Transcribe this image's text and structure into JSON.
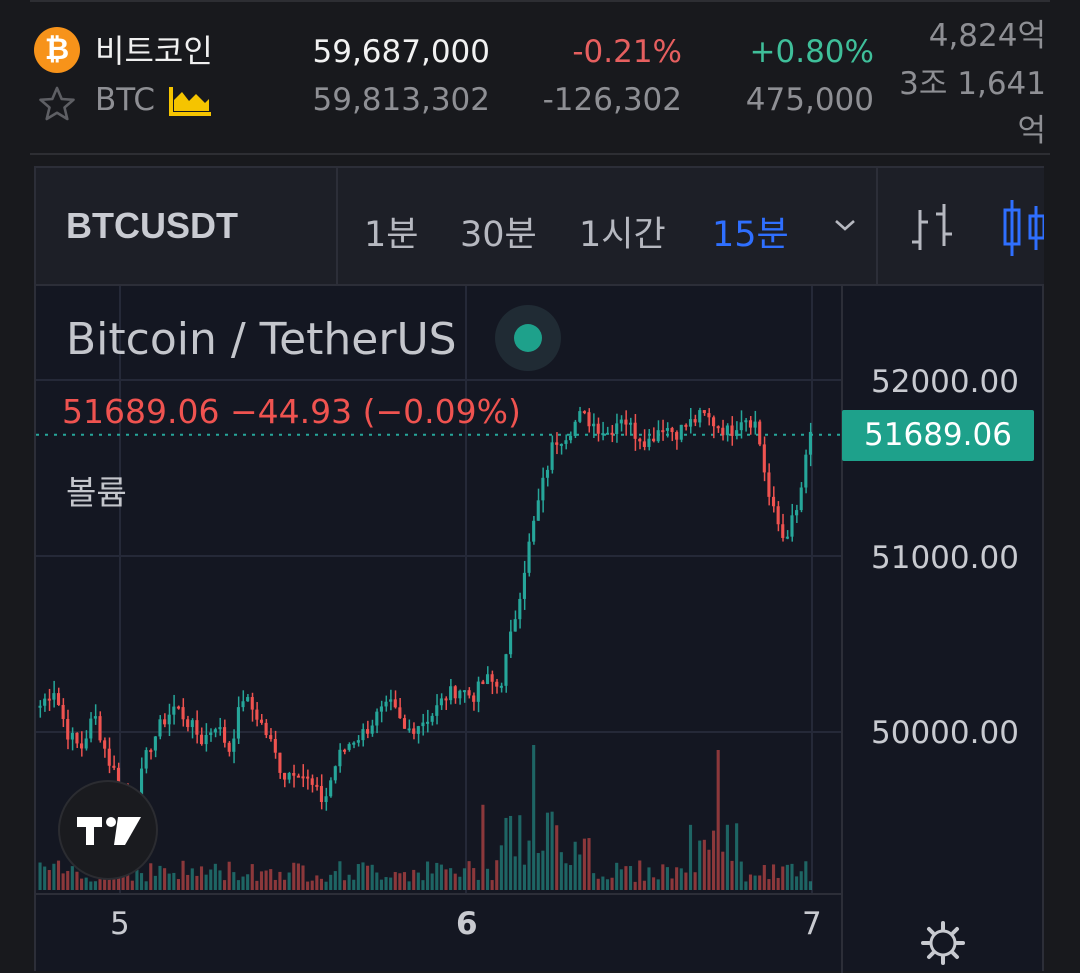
{
  "coin": {
    "name": "비트코인",
    "ticker": "BTC",
    "logo_glyph": "₿",
    "price": "59,687,000",
    "prev_price": "59,813,302",
    "change_pct": "-0.21%",
    "change_amt": "-126,302",
    "change2_pct": "+0.80%",
    "change2_amt": "475,000",
    "volume_line1": "4,824억",
    "volume_line2": "3조 1,641",
    "volume_line3": "억"
  },
  "toolbar": {
    "symbol": "BTCUSDT",
    "timeframes": [
      "1분",
      "30분",
      "1시간",
      "15분"
    ],
    "active_timeframe": "15분"
  },
  "legend": {
    "title": "Bitcoin / TetherUS",
    "last": "51689.06",
    "change": "−44.93",
    "change_pct": "(−0.09%)",
    "volume_label": "볼륨"
  },
  "price_axis": {
    "labels": [
      "52000.00",
      "51000.00",
      "50000.00"
    ],
    "current_price": "51689.06"
  },
  "time_axis": [
    "5",
    "6",
    "7"
  ],
  "colors": {
    "up": "#26a69a",
    "down": "#ef5350",
    "accent": "#2f6fff",
    "btc": "#f7931a"
  },
  "chart_data": {
    "type": "candlestick",
    "symbol": "BTCUSDT",
    "last_price": 51689.06,
    "ylim": [
      49500,
      52400
    ],
    "x_ticks": [
      "5",
      "6",
      "7"
    ],
    "close_path": [
      50150,
      50250,
      50000,
      49900,
      50100,
      49850,
      49700,
      49600,
      49900,
      50050,
      50150,
      50050,
      49950,
      50050,
      49900,
      50200,
      50100,
      49950,
      49750,
      49800,
      49700,
      49600,
      49850,
      49950,
      50000,
      50100,
      50150,
      50000,
      50050,
      50100,
      50200,
      50250,
      50200,
      50300,
      50250,
      50600,
      51000,
      51350,
      51650,
      51700,
      51800,
      51750,
      51700,
      51800,
      51700,
      51650,
      51750,
      51700,
      51750,
      51800,
      51750,
      51700,
      51800,
      51750,
      51300,
      51100,
      51250,
      51689
    ],
    "volume_profile": "low, with spikes near day 6 rally and late day 6 drop"
  }
}
